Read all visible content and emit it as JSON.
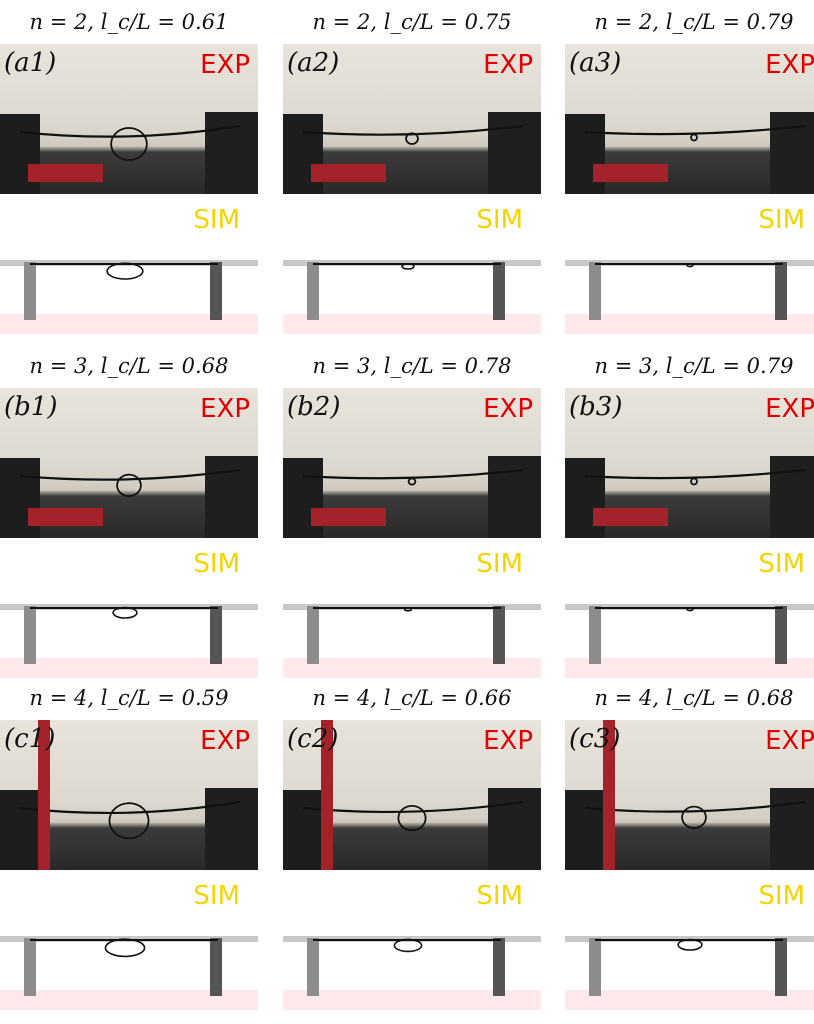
{
  "labels": {
    "exp": "EXP",
    "sim": "SIM"
  },
  "panels": [
    {
      "id": "a1",
      "label": "(a1)",
      "caption": "n = 2,  l_c/L = 0.61",
      "n": 2,
      "lc_over_L": 0.61
    },
    {
      "id": "a2",
      "label": "(a2)",
      "caption": "n = 2,  l_c/L = 0.75",
      "n": 2,
      "lc_over_L": 0.75
    },
    {
      "id": "a3",
      "label": "(a3)",
      "caption": "n = 2,  l_c/L = 0.79",
      "n": 2,
      "lc_over_L": 0.79
    },
    {
      "id": "b1",
      "label": "(b1)",
      "caption": "n = 3,  l_c/L = 0.68",
      "n": 3,
      "lc_over_L": 0.68
    },
    {
      "id": "b2",
      "label": "(b2)",
      "caption": "n = 3,  l_c/L = 0.78",
      "n": 3,
      "lc_over_L": 0.78
    },
    {
      "id": "b3",
      "label": "(b3)",
      "caption": "n = 3,  l_c/L = 0.79",
      "n": 3,
      "lc_over_L": 0.79
    },
    {
      "id": "c1",
      "label": "(c1)",
      "caption": "n = 4,  l_c/L = 0.59",
      "n": 4,
      "lc_over_L": 0.59
    },
    {
      "id": "c2",
      "label": "(c2)",
      "caption": "n = 4,  l_c/L = 0.66",
      "n": 4,
      "lc_over_L": 0.66
    },
    {
      "id": "c3",
      "label": "(c3)",
      "caption": "n = 4,  l_c/L = 0.68",
      "n": 4,
      "lc_over_L": 0.68
    }
  ]
}
